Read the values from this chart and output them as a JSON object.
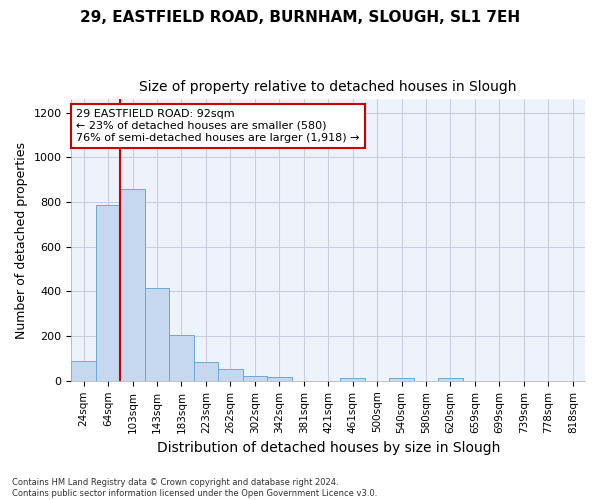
{
  "title_line1": "29, EASTFIELD ROAD, BURNHAM, SLOUGH, SL1 7EH",
  "title_line2": "Size of property relative to detached houses in Slough",
  "xlabel": "Distribution of detached houses by size in Slough",
  "ylabel": "Number of detached properties",
  "footnote": "Contains HM Land Registry data © Crown copyright and database right 2024.\nContains public sector information licensed under the Open Government Licence v3.0.",
  "categories": [
    "24sqm",
    "64sqm",
    "103sqm",
    "143sqm",
    "183sqm",
    "223sqm",
    "262sqm",
    "302sqm",
    "342sqm",
    "381sqm",
    "421sqm",
    "461sqm",
    "500sqm",
    "540sqm",
    "580sqm",
    "620sqm",
    "659sqm",
    "699sqm",
    "739sqm",
    "778sqm",
    "818sqm"
  ],
  "values": [
    90,
    785,
    860,
    415,
    205,
    85,
    52,
    22,
    15,
    0,
    0,
    13,
    0,
    12,
    0,
    12,
    0,
    0,
    0,
    0,
    0
  ],
  "bar_color": "#c5d8f0",
  "bar_edge_color": "#6aaad4",
  "vline_x": 1.5,
  "vline_color": "#cc0000",
  "annotation_text": "29 EASTFIELD ROAD: 92sqm\n← 23% of detached houses are smaller (580)\n76% of semi-detached houses are larger (1,918) →",
  "annotation_box_color": "#ffffff",
  "annotation_box_edge": "#cc0000",
  "ylim": [
    0,
    1260
  ],
  "yticks": [
    0,
    200,
    400,
    600,
    800,
    1000,
    1200
  ],
  "grid_color": "#c8d0e0",
  "bg_color": "#eef2fb",
  "title1_fontsize": 11,
  "title2_fontsize": 10,
  "tick_fontsize": 7.5,
  "ylabel_fontsize": 9,
  "xlabel_fontsize": 10
}
